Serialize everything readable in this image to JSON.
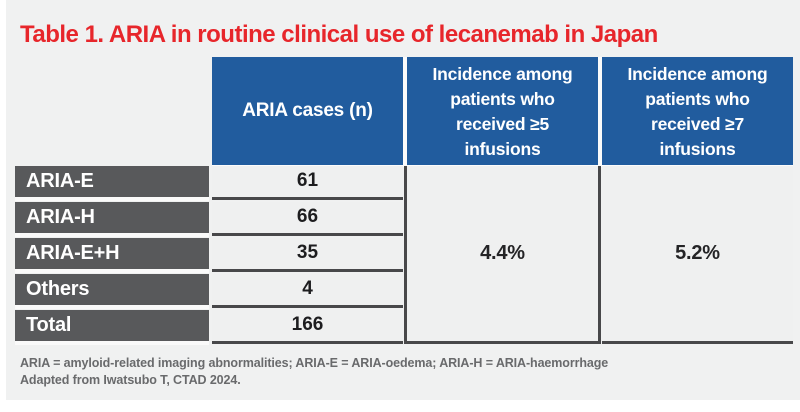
{
  "title": "Table 1. ARIA in routine clinical use of lecanemab in Japan",
  "table": {
    "column_headers": [
      "ARIA cases (n)",
      "Incidence among\npatients who\nreceived ≥5\ninfusions",
      "Incidence among\npatients who\nreceived ≥7\ninfusions"
    ],
    "rows": [
      {
        "label": "ARIA-E",
        "value": "61"
      },
      {
        "label": "ARIA-H",
        "value": "66"
      },
      {
        "label": "ARIA-E+H",
        "value": "35"
      },
      {
        "label": "Others",
        "value": "4"
      },
      {
        "label": "Total",
        "value": "166"
      }
    ],
    "incidence_ge5": "4.4%",
    "incidence_ge7": "5.2%"
  },
  "footnote": {
    "line1": "ARIA = amyloid-related imaging abnormalities; ARIA-E = ARIA-oedema; ARIA-H = ARIA-haemorrhage",
    "line2": "Adapted from Iwatsubo T, CTAD 2024."
  },
  "colors": {
    "accent_blue": "#215c9e",
    "row_header_gray": "#58595b",
    "title_red": "#e7262b",
    "panel_background": "#f0f1f1",
    "cell_border": "#48484a"
  },
  "chart_data": {
    "type": "table",
    "title": "Table 1. ARIA in routine clinical use of lecanemab in Japan",
    "columns": [
      "",
      "ARIA cases (n)",
      "Incidence among patients who received ≥5 infusions",
      "Incidence among patients who received ≥7 infusions"
    ],
    "rows": [
      [
        "ARIA-E",
        61,
        "4.4%",
        "5.2%"
      ],
      [
        "ARIA-H",
        66,
        "4.4%",
        "5.2%"
      ],
      [
        "ARIA-E+H",
        35,
        "4.4%",
        "5.2%"
      ],
      [
        "Others",
        4,
        "4.4%",
        "5.2%"
      ],
      [
        "Total",
        166,
        "4.4%",
        "5.2%"
      ]
    ],
    "notes": "Incidence columns are merged cells spanning all five rows: 4.4% (≥5 infusions) and 5.2% (≥7 infusions)"
  }
}
